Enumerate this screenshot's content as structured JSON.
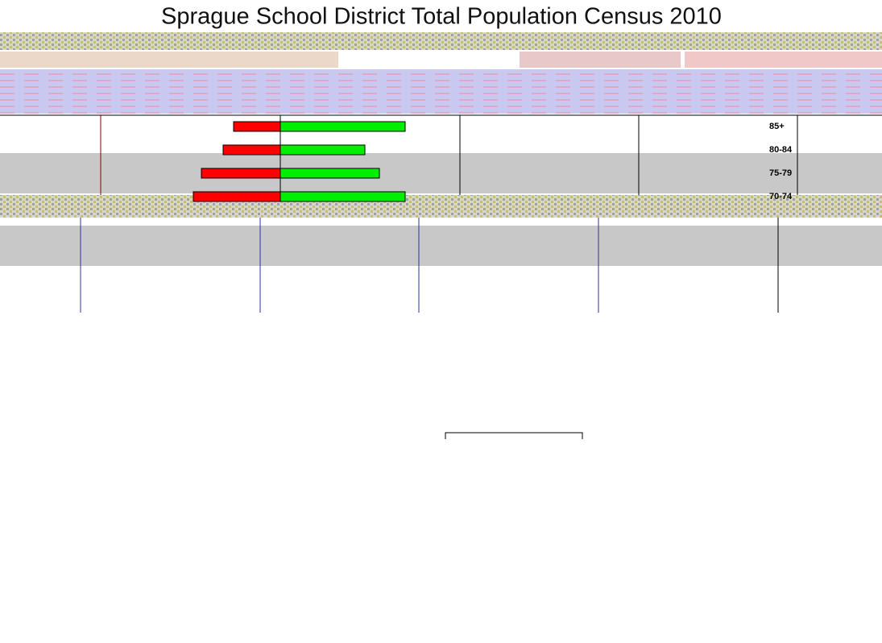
{
  "chart_data": {
    "type": "pyramid",
    "title": "Sprague School District Total Population Census 2010",
    "categories": [
      "85+",
      "80-84",
      "75-79",
      "70-74"
    ],
    "series": [
      {
        "color": "#ff0000",
        "values": [
          58,
          71,
          98,
          108
        ]
      },
      {
        "color": "#00ee00",
        "values": [
          155,
          105,
          123,
          155
        ]
      }
    ]
  }
}
